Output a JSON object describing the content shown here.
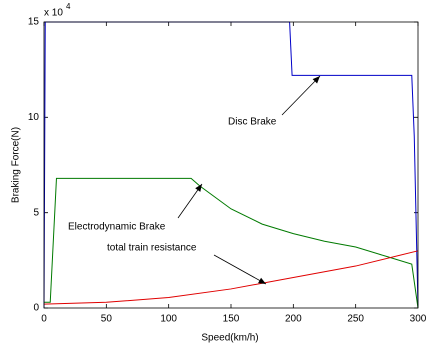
{
  "chart_data": {
    "type": "line",
    "x_label": "Speed(km/h)",
    "y_label": "Braking Force(N)",
    "y_exponent_base": "x 10",
    "y_exponent": "4",
    "xlim": [
      0,
      300
    ],
    "xticks": [
      0,
      50,
      100,
      150,
      200,
      250,
      300
    ],
    "ylim": [
      0,
      15
    ],
    "yticks": [
      0,
      5,
      10,
      15
    ],
    "series": [
      {
        "name": "Disc Brake",
        "color": "#0000c8",
        "x": [
          0,
          1,
          197,
          199,
          295,
          297,
          300
        ],
        "values": [
          0,
          15,
          15,
          12.2,
          12.2,
          9,
          0
        ]
      },
      {
        "name": "Electrodynamic Brake",
        "color": "#007a00",
        "x": [
          0,
          5,
          10,
          118,
          125,
          150,
          175,
          200,
          225,
          250,
          275,
          295,
          300
        ],
        "values": [
          0.3,
          0.3,
          6.8,
          6.8,
          6.4,
          5.2,
          4.4,
          3.9,
          3.5,
          3.2,
          2.7,
          2.3,
          0
        ]
      },
      {
        "name": "total train resistance",
        "color": "#e00000",
        "x": [
          0,
          50,
          100,
          150,
          200,
          250,
          300
        ],
        "values": [
          0.2,
          0.3,
          0.55,
          1.0,
          1.6,
          2.2,
          3.0
        ]
      }
    ]
  }
}
